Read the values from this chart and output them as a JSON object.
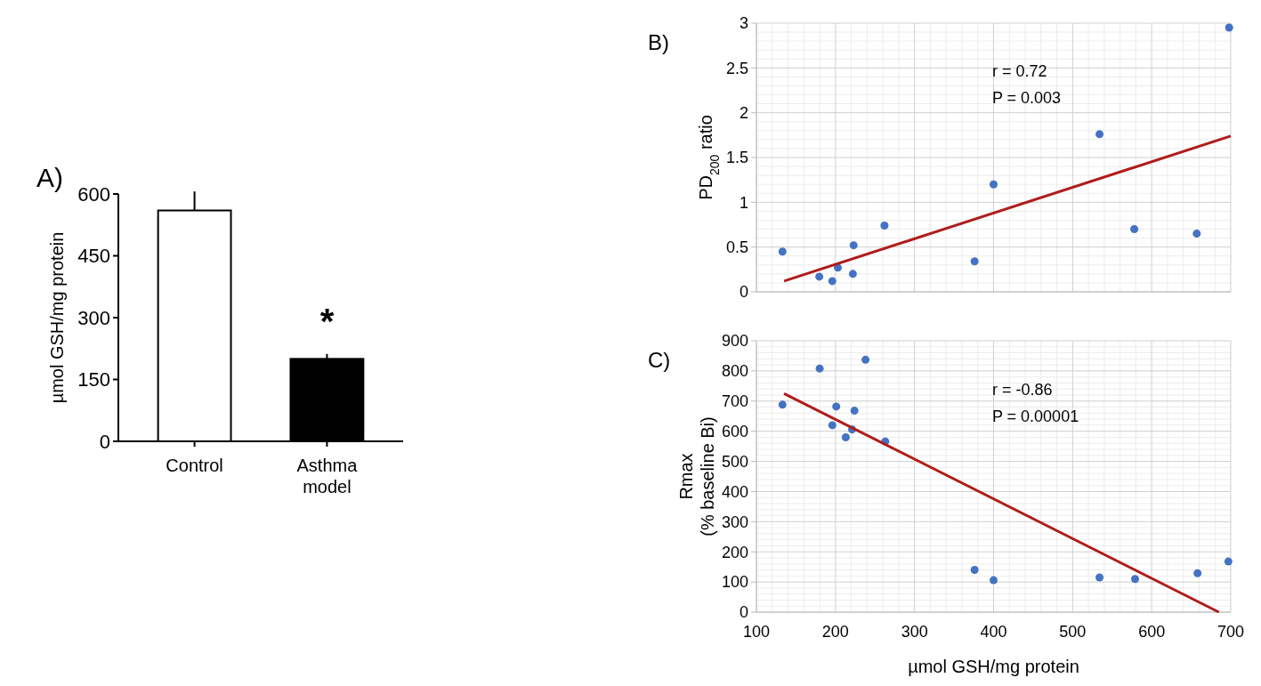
{
  "chart_data": [
    {
      "type": "bar",
      "title": "A)",
      "ylabel": "µmol GSH/mg protein",
      "categories": [
        "Control",
        "Asthma model"
      ],
      "values": [
        560,
        200
      ],
      "colors": [
        "#ffffff",
        "#000000"
      ],
      "errors": [
        [
          560,
          606
        ],
        [
          200,
          212
        ]
      ],
      "ylim": [
        0,
        600
      ],
      "yticks": [
        0,
        150,
        300,
        450,
        600
      ],
      "annotations": [
        "*"
      ]
    },
    {
      "type": "scatter",
      "title": "B)",
      "ylabel": "PD$_{200}$ ratio",
      "xlim": [
        100,
        700
      ],
      "xticks": [
        100,
        200,
        300,
        400,
        500,
        600,
        700
      ],
      "tick_labels": "y",
      "ylim": [
        0,
        3
      ],
      "yticks": [
        0,
        0.5,
        1,
        1.5,
        2,
        2.5,
        3
      ],
      "grid": true,
      "series": [
        {
          "marker": "circle",
          "color": "#4472c4",
          "x": [
            133,
            179.5,
            196,
            203,
            223,
            222,
            262,
            376,
            400,
            534,
            578,
            657,
            698
          ],
          "values": [
            0.45,
            0.17,
            0.12,
            0.27,
            0.52,
            0.2,
            0.74,
            0.34,
            1.2,
            1.76,
            0.7,
            0.65,
            2.95
          ]
        },
        {
          "type": "line",
          "marker": "none",
          "color": "#b01c1c",
          "x": [
            135,
            700
          ],
          "values": [
            0.12,
            1.74
          ]
        }
      ],
      "annotations": [
        "r = 0.72",
        "P = 0.003"
      ]
    },
    {
      "type": "scatter",
      "title": "C)",
      "ylabel": "Rmax\n(% baseline Bi)",
      "xlabel": "µmol GSH/mg protein",
      "xlim": [
        100,
        700
      ],
      "xticks": [
        100,
        200,
        300,
        400,
        500,
        600,
        700
      ],
      "ylim": [
        0,
        900
      ],
      "yticks": [
        0,
        100,
        200,
        300,
        400,
        500,
        600,
        700,
        800,
        900
      ],
      "grid": true,
      "series": [
        {
          "marker": "circle",
          "color": "#4472c4",
          "x": [
            133,
            180,
            196,
            201,
            213,
            221,
            224,
            238,
            263,
            376,
            400,
            534,
            579,
            658,
            697
          ],
          "values": [
            688,
            808,
            620,
            682,
            580,
            606,
            668,
            837,
            566,
            140,
            106,
            115,
            110,
            129,
            168
          ]
        },
        {
          "type": "line",
          "marker": "none",
          "color": "#b01c1c",
          "x": [
            135,
            685
          ],
          "values": [
            725,
            0
          ]
        }
      ],
      "annotations": [
        "r = -0.86",
        "P = 0.00001"
      ]
    }
  ]
}
